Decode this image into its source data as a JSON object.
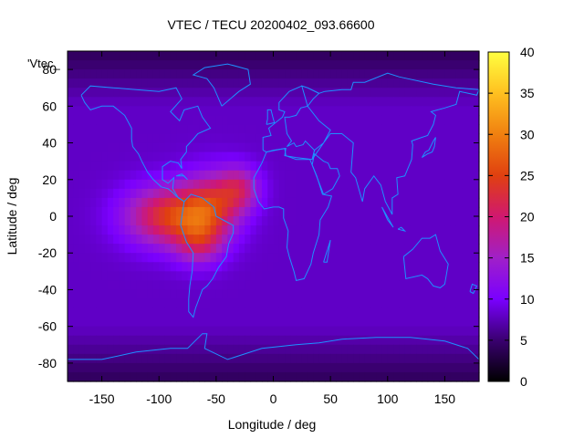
{
  "chart_data": {
    "type": "heatmap",
    "title": "VTEC / TECU 20200402_093.66600",
    "xlabel": "Longitude / deg",
    "ylabel": "Latitude / deg",
    "overlay_label": "'Vtec_",
    "xlim": [
      -180,
      180
    ],
    "ylim": [
      -90,
      90
    ],
    "x_ticks": [
      -150,
      -100,
      -50,
      0,
      50,
      100,
      150
    ],
    "y_ticks": [
      -80,
      -60,
      -40,
      -20,
      0,
      20,
      40,
      60,
      80
    ],
    "colorbar": {
      "range": [
        0,
        40
      ],
      "ticks": [
        0,
        5,
        10,
        15,
        20,
        25,
        30,
        35,
        40
      ],
      "palette": [
        "#000000",
        "#3a0070",
        "#7a00ff",
        "#a020c8",
        "#d01870",
        "#e04010",
        "#f08010",
        "#ffc020",
        "#ffff40"
      ]
    },
    "background_value": 8,
    "blobs": [
      {
        "lon": -90,
        "lat": 0,
        "slon": 38,
        "slat": 16,
        "amp": 16
      },
      {
        "lon": -55,
        "lat": 5,
        "slon": 25,
        "slat": 18,
        "amp": 12
      },
      {
        "lon": -30,
        "lat": 15,
        "slon": 18,
        "slat": 12,
        "amp": 10
      },
      {
        "lon": -65,
        "lat": -15,
        "slon": 20,
        "slat": 12,
        "amp": 8
      }
    ],
    "grid": false,
    "legend": "none"
  }
}
